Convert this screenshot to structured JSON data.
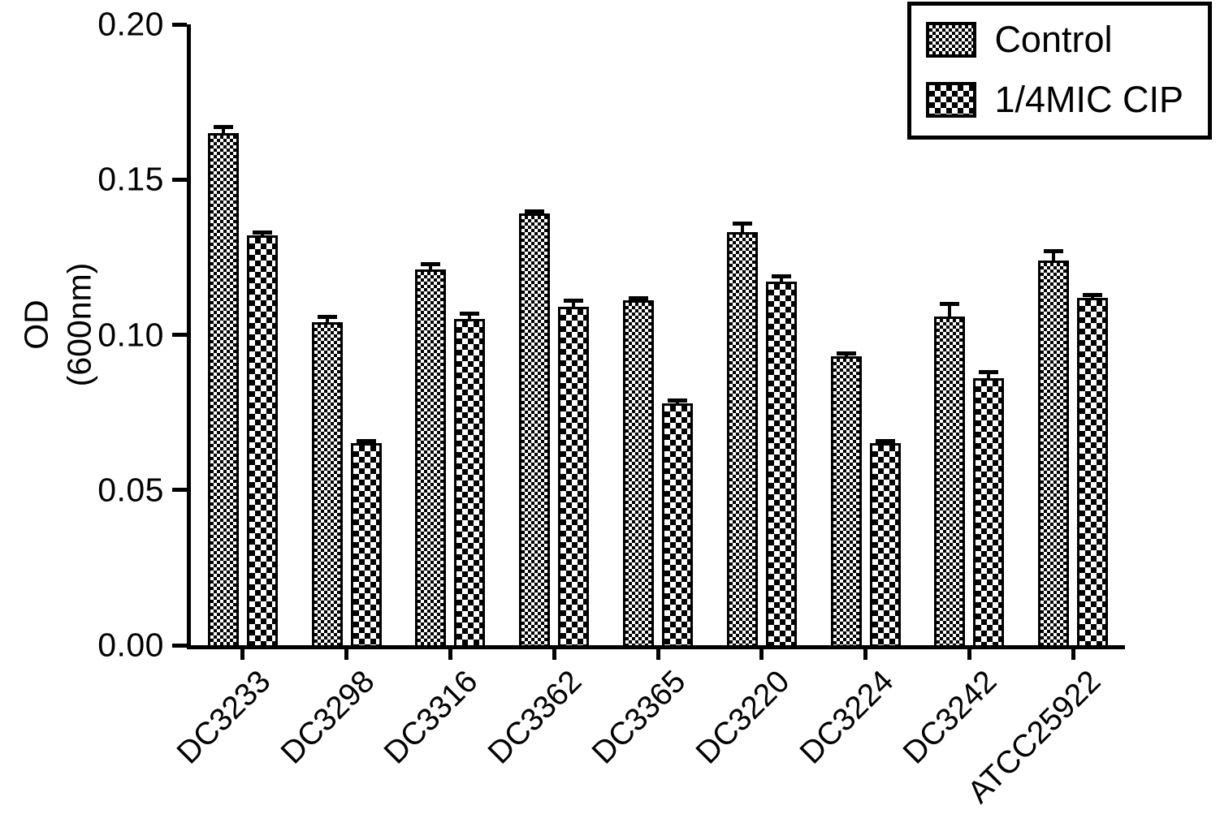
{
  "chart_data": {
    "type": "bar",
    "title": "",
    "xlabel": "",
    "ylabel": "OD (600nm)",
    "ylabel_lines": [
      "OD",
      "(600nm)"
    ],
    "ylim": [
      0,
      0.2
    ],
    "yticks": [
      0,
      0.05,
      0.1,
      0.15,
      0.2
    ],
    "ytick_labels": [
      "0.00",
      "0.05",
      "0.10",
      "0.15",
      "0.20"
    ],
    "categories": [
      "DC3233",
      "DC3298",
      "DC3316",
      "DC3362",
      "DC3365",
      "DC3220",
      "DC3224",
      "DC3242",
      "ATCC25922"
    ],
    "series": [
      {
        "name": "Control",
        "pattern": "fine-checkerboard",
        "values": [
          0.165,
          0.104,
          0.121,
          0.139,
          0.111,
          0.133,
          0.093,
          0.106,
          0.124
        ],
        "errors": [
          0.002,
          0.002,
          0.002,
          0.001,
          0.001,
          0.003,
          0.001,
          0.004,
          0.003
        ]
      },
      {
        "name": "1/4MIC CIP",
        "pattern": "coarse-checkerboard",
        "values": [
          0.132,
          0.065,
          0.105,
          0.109,
          0.078,
          0.117,
          0.065,
          0.086,
          0.112
        ],
        "errors": [
          0.001,
          0.001,
          0.002,
          0.002,
          0.001,
          0.002,
          0.001,
          0.002,
          0.001
        ]
      }
    ],
    "grid": false,
    "legend_position": "top-right",
    "colors": {
      "foreground": "#000000",
      "background": "#ffffff"
    }
  }
}
